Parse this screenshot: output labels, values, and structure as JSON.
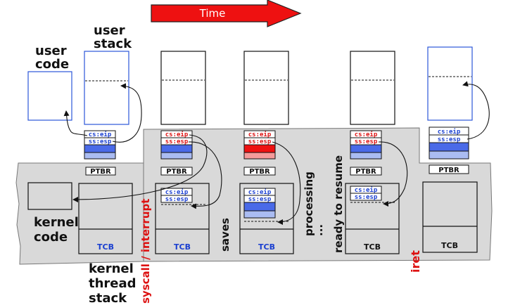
{
  "header": {
    "time_label": "Time"
  },
  "labels": {
    "user_code": [
      "user",
      "code"
    ],
    "user_stack": [
      "user",
      "stack"
    ],
    "kernel_code": [
      "kernel",
      "code"
    ],
    "kernel_thread_stack": [
      "kernel",
      "thread",
      "stack"
    ],
    "syscall": "syscall / interrupt",
    "saves": "saves",
    "processing": "processing",
    "ellipsis": "...",
    "ready": "ready to resume",
    "iret": "iret"
  },
  "frame": {
    "cs_eip": "cs:eip",
    "ss_esp": "ss:esp",
    "ptbr": "PTBR",
    "tcb": "TCB"
  },
  "colors": {
    "arrow_red": "#ee1111",
    "text_red": "#dd1111",
    "text_blue": "#1a3fd0",
    "box_blue": "#2b56d8",
    "band_blue": "#4a6ae8",
    "band_light_blue": "#aabcf2",
    "band_red": "#ee1111",
    "band_light_red": "#f59a9a",
    "kernel_gray": "#d9d9d9"
  }
}
